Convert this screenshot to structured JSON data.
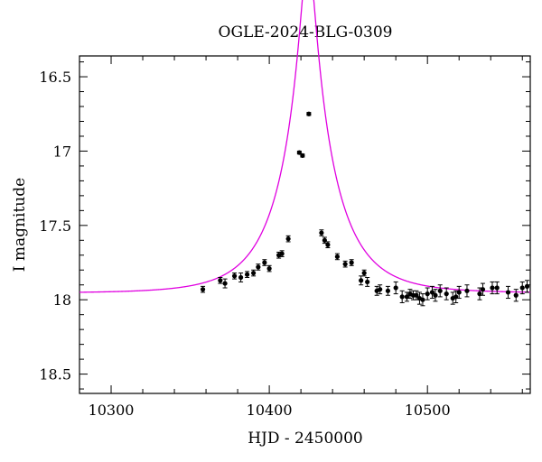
{
  "chart_data": {
    "type": "scatter",
    "title": "OGLE-2024-BLG-0309",
    "xlabel": "HJD - 2450000",
    "ylabel": "I magnitude",
    "xlim": [
      10280,
      10565
    ],
    "ylim": [
      18.63,
      16.36
    ],
    "y_inverted": true,
    "x_major_ticks": [
      10300,
      10400,
      10500
    ],
    "x_tick_labels": [
      "10300",
      "10400",
      "10500"
    ],
    "y_major_ticks": [
      16.5,
      17,
      17.5,
      18,
      18.5
    ],
    "y_tick_labels": [
      "16.5",
      "17",
      "17.5",
      "18",
      "18.5"
    ],
    "grid": false,
    "series": [
      {
        "kind": "points",
        "color": "#000000",
        "x": [
          10358,
          10369,
          10372,
          10378,
          10382,
          10386,
          10390,
          10393,
          10397,
          10400,
          10406,
          10408,
          10412,
          10419,
          10421,
          10425,
          10433,
          10435,
          10437,
          10443,
          10448,
          10452,
          10458,
          10460,
          10462,
          10468,
          10470,
          10475,
          10480,
          10484,
          10487,
          10489,
          10491,
          10493,
          10495,
          10497,
          10500,
          10503,
          10505,
          10508,
          10512,
          10516,
          10518,
          10520,
          10525,
          10533,
          10535,
          10541,
          10544,
          10551,
          10556,
          10560,
          10563
        ],
        "y": [
          17.93,
          17.87,
          17.89,
          17.84,
          17.85,
          17.83,
          17.82,
          17.78,
          17.75,
          17.79,
          17.7,
          17.69,
          17.59,
          17.01,
          17.03,
          16.75,
          17.55,
          17.6,
          17.63,
          17.71,
          17.76,
          17.75,
          17.87,
          17.82,
          17.88,
          17.94,
          17.93,
          17.94,
          17.92,
          17.98,
          17.98,
          17.96,
          17.97,
          17.97,
          17.99,
          18.0,
          17.96,
          17.95,
          17.97,
          17.94,
          17.96,
          17.99,
          17.98,
          17.95,
          17.94,
          17.96,
          17.93,
          17.92,
          17.92,
          17.95,
          17.97,
          17.92,
          17.91
        ],
        "error": [
          0.02,
          0.02,
          0.03,
          0.02,
          0.03,
          0.02,
          0.02,
          0.02,
          0.02,
          0.02,
          0.02,
          0.02,
          0.02,
          0.01,
          0.01,
          0.01,
          0.02,
          0.02,
          0.02,
          0.02,
          0.02,
          0.02,
          0.03,
          0.02,
          0.03,
          0.03,
          0.03,
          0.03,
          0.04,
          0.04,
          0.03,
          0.03,
          0.03,
          0.03,
          0.04,
          0.04,
          0.04,
          0.04,
          0.04,
          0.04,
          0.04,
          0.04,
          0.04,
          0.04,
          0.04,
          0.04,
          0.04,
          0.04,
          0.04,
          0.04,
          0.04,
          0.04,
          0.04
        ]
      },
      {
        "kind": "model",
        "color": "#e000e0",
        "baseline": 17.955,
        "t0": 10424.5,
        "u0": 0.125,
        "tE": 34.0
      }
    ]
  }
}
